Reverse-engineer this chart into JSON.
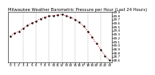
{
  "title": "Milwaukee Weather Barometric Pressure per Hour (Last 24 Hours)",
  "hours": [
    0,
    1,
    2,
    3,
    4,
    5,
    6,
    7,
    8,
    9,
    10,
    11,
    12,
    13,
    14,
    15,
    16,
    17,
    18,
    19,
    20,
    21,
    22,
    23
  ],
  "pressure": [
    29.25,
    29.32,
    29.38,
    29.45,
    29.54,
    29.6,
    29.65,
    29.72,
    29.76,
    29.79,
    29.8,
    29.82,
    29.83,
    29.8,
    29.76,
    29.7,
    29.62,
    29.52,
    29.38,
    29.22,
    29.05,
    28.88,
    28.72,
    28.6
  ],
  "line_color": "#cc0000",
  "marker_color": "#000000",
  "bg_color": "#ffffff",
  "grid_color": "#999999",
  "title_fontsize": 3.8,
  "tick_fontsize": 3.0,
  "ylim_min": 28.55,
  "ylim_max": 29.9,
  "ytick_values": [
    28.6,
    28.7,
    28.8,
    28.9,
    29.0,
    29.1,
    29.2,
    29.3,
    29.4,
    29.5,
    29.6,
    29.7,
    29.8,
    29.9
  ],
  "xtick_labels": [
    "0",
    "1",
    "2",
    "3",
    "4",
    "5",
    "6",
    "7",
    "8",
    "9",
    "10",
    "11",
    "12",
    "13",
    "14",
    "15",
    "16",
    "17",
    "18",
    "19",
    "20",
    "21",
    "22",
    "23"
  ],
  "vgrid_positions": [
    3,
    6,
    9,
    12,
    15,
    18,
    21
  ]
}
